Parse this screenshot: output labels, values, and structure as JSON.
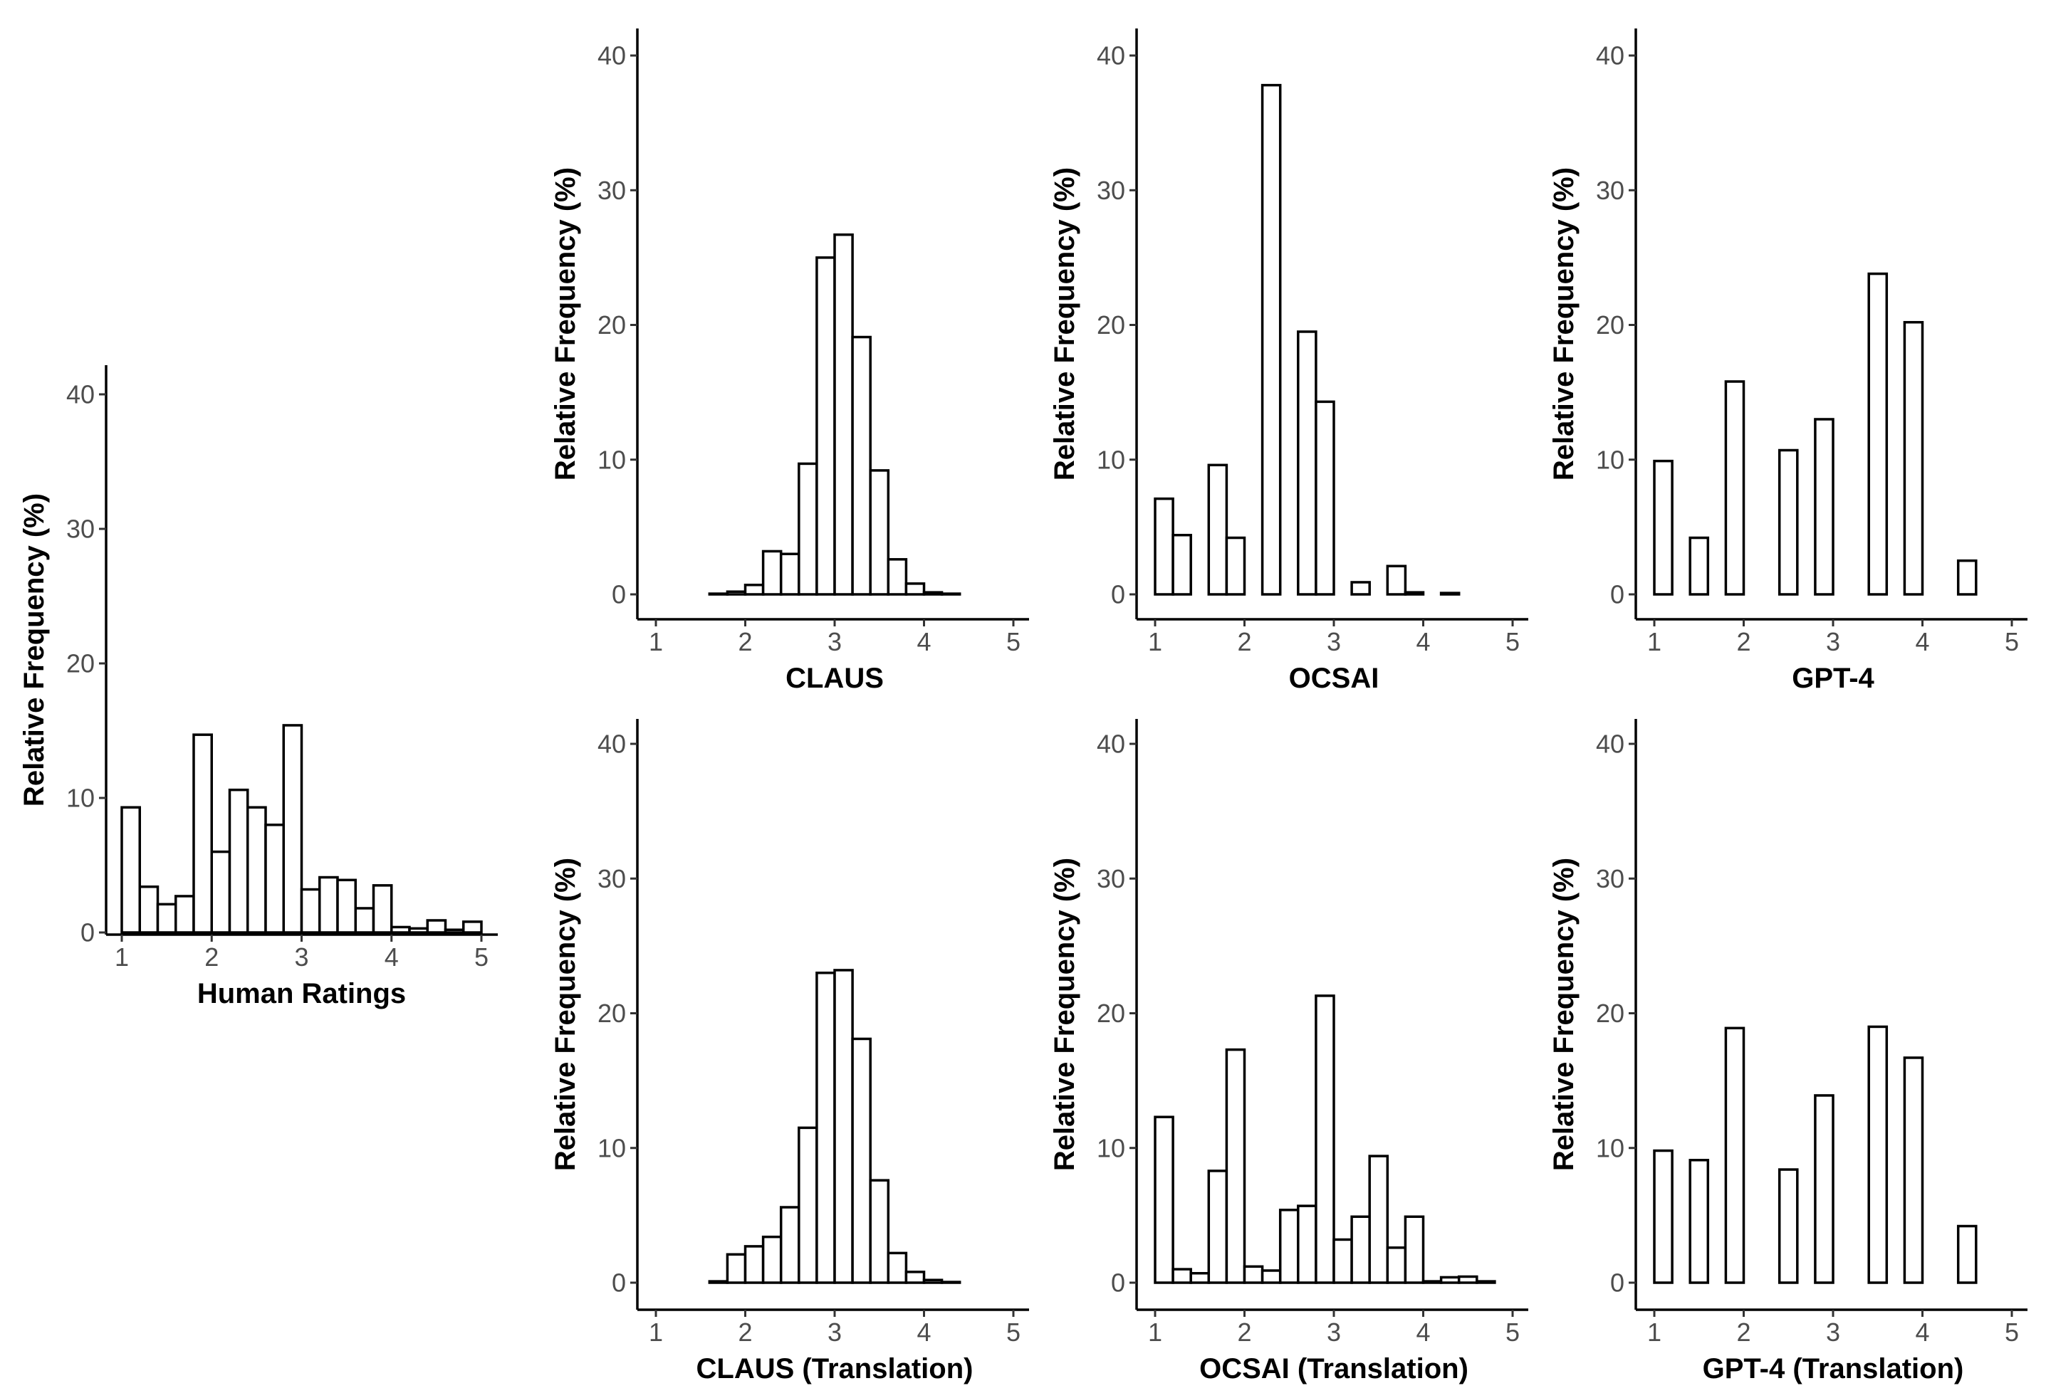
{
  "chart_data": [
    {
      "type": "bar",
      "id": "human",
      "title": "",
      "xlabel": "Human Ratings",
      "ylabel": "Relative Frequency (%)",
      "xlim": [
        1,
        5
      ],
      "ylim": [
        0,
        40
      ],
      "xticks": [
        1,
        2,
        3,
        4,
        5
      ],
      "yticks": [
        0,
        10,
        20,
        30,
        40
      ],
      "bin_width": 0.2,
      "bin_starts": [
        1.0,
        1.2,
        1.4,
        1.6,
        1.8,
        2.0,
        2.2,
        2.4,
        2.6,
        2.8,
        3.0,
        3.2,
        3.4,
        3.6,
        3.8,
        4.0,
        4.2,
        4.4,
        4.6,
        4.8
      ],
      "values": [
        9.3,
        3.4,
        2.1,
        2.7,
        14.7,
        6.0,
        10.6,
        9.3,
        8.0,
        15.4,
        3.2,
        4.1,
        3.9,
        1.8,
        3.5,
        0.4,
        0.3,
        0.9,
        0.2,
        0.8
      ],
      "grid": false
    },
    {
      "type": "bar",
      "id": "claus",
      "title": "",
      "xlabel": "CLAUS",
      "ylabel": "Relative Frequency (%)",
      "xlim": [
        1,
        5
      ],
      "ylim": [
        0,
        40
      ],
      "xticks": [
        1,
        2,
        3,
        4,
        5
      ],
      "yticks": [
        0,
        10,
        20,
        30,
        40
      ],
      "bin_width": 0.2,
      "bin_starts": [
        1.0,
        1.2,
        1.4,
        1.6,
        1.8,
        2.0,
        2.2,
        2.4,
        2.6,
        2.8,
        3.0,
        3.2,
        3.4,
        3.6,
        3.8,
        4.0,
        4.2,
        4.4,
        4.6,
        4.8
      ],
      "values": [
        0,
        0,
        0,
        0.05,
        0.2,
        0.7,
        3.2,
        3.0,
        9.7,
        25.0,
        26.7,
        19.1,
        9.2,
        2.6,
        0.8,
        0.15,
        0.05,
        0,
        0,
        0
      ],
      "grid": false
    },
    {
      "type": "bar",
      "id": "ocsai",
      "title": "",
      "xlabel": "OCSAI",
      "ylabel": "Relative Frequency (%)",
      "xlim": [
        1,
        5
      ],
      "ylim": [
        0,
        40
      ],
      "xticks": [
        1,
        2,
        3,
        4,
        5
      ],
      "yticks": [
        0,
        10,
        20,
        30,
        40
      ],
      "bin_width": 0.2,
      "bin_starts": [
        1.0,
        1.2,
        1.4,
        1.6,
        1.8,
        2.0,
        2.2,
        2.4,
        2.6,
        2.8,
        3.0,
        3.2,
        3.4,
        3.6,
        3.8,
        4.0,
        4.2,
        4.4,
        4.6,
        4.8
      ],
      "values": [
        7.1,
        4.4,
        0,
        9.6,
        4.2,
        0,
        37.8,
        0,
        19.5,
        14.3,
        0,
        0.9,
        0,
        2.1,
        0.15,
        0,
        0.1,
        0,
        0,
        0
      ],
      "grid": false
    },
    {
      "type": "bar",
      "id": "gpt4",
      "title": "",
      "xlabel": "GPT-4",
      "ylabel": "Relative Frequency (%)",
      "xlim": [
        1,
        5
      ],
      "ylim": [
        0,
        40
      ],
      "xticks": [
        1,
        2,
        3,
        4,
        5
      ],
      "yticks": [
        0,
        10,
        20,
        30,
        40
      ],
      "bin_width": 0.2,
      "bin_starts": [
        1.0,
        1.2,
        1.4,
        1.6,
        1.8,
        2.0,
        2.2,
        2.4,
        2.6,
        2.8,
        3.0,
        3.2,
        3.4,
        3.6,
        3.8,
        4.0,
        4.2,
        4.4,
        4.6,
        4.8
      ],
      "values": [
        9.9,
        0,
        4.2,
        0,
        15.8,
        0,
        0,
        10.7,
        0,
        13.0,
        0,
        0,
        23.8,
        0,
        20.2,
        0,
        0,
        2.5,
        0,
        0
      ],
      "grid": false
    },
    {
      "type": "bar",
      "id": "claus-translation",
      "title": "",
      "xlabel": "CLAUS (Translation)",
      "ylabel": "Relative Frequency (%)",
      "xlim": [
        1,
        5
      ],
      "ylim": [
        0,
        40
      ],
      "xticks": [
        1,
        2,
        3,
        4,
        5
      ],
      "yticks": [
        0,
        10,
        20,
        30,
        40
      ],
      "bin_width": 0.2,
      "bin_starts": [
        1.0,
        1.2,
        1.4,
        1.6,
        1.8,
        2.0,
        2.2,
        2.4,
        2.6,
        2.8,
        3.0,
        3.2,
        3.4,
        3.6,
        3.8,
        4.0,
        4.2,
        4.4,
        4.6,
        4.8
      ],
      "values": [
        0,
        0,
        0,
        0.1,
        2.1,
        2.7,
        3.4,
        5.6,
        11.5,
        23.0,
        23.2,
        18.1,
        7.6,
        2.2,
        0.8,
        0.2,
        0.05,
        0,
        0,
        0
      ],
      "grid": false
    },
    {
      "type": "bar",
      "id": "ocsai-translation",
      "title": "",
      "xlabel": "OCSAI (Translation)",
      "ylabel": "Relative Frequency (%)",
      "xlim": [
        1,
        5
      ],
      "ylim": [
        0,
        40
      ],
      "xticks": [
        1,
        2,
        3,
        4,
        5
      ],
      "yticks": [
        0,
        10,
        20,
        30,
        40
      ],
      "bin_width": 0.2,
      "bin_starts": [
        1.0,
        1.2,
        1.4,
        1.6,
        1.8,
        2.0,
        2.2,
        2.4,
        2.6,
        2.8,
        3.0,
        3.2,
        3.4,
        3.6,
        3.8,
        4.0,
        4.2,
        4.4,
        4.6,
        4.8
      ],
      "values": [
        12.3,
        1.0,
        0.7,
        8.3,
        17.3,
        1.2,
        0.9,
        5.4,
        5.7,
        21.3,
        3.2,
        4.9,
        9.4,
        2.6,
        4.9,
        0.1,
        0.4,
        0.45,
        0.1,
        0
      ],
      "grid": false
    },
    {
      "type": "bar",
      "id": "gpt4-translation",
      "title": "",
      "xlabel": "GPT-4 (Translation)",
      "ylabel": "Relative Frequency (%)",
      "xlim": [
        1,
        5
      ],
      "ylim": [
        0,
        40
      ],
      "xticks": [
        1,
        2,
        3,
        4,
        5
      ],
      "yticks": [
        0,
        10,
        20,
        30,
        40
      ],
      "bin_width": 0.2,
      "bin_starts": [
        1.0,
        1.2,
        1.4,
        1.6,
        1.8,
        2.0,
        2.2,
        2.4,
        2.6,
        2.8,
        3.0,
        3.2,
        3.4,
        3.6,
        3.8,
        4.0,
        4.2,
        4.4,
        4.6,
        4.8
      ],
      "values": [
        9.8,
        0,
        9.1,
        0,
        18.9,
        0,
        0,
        8.4,
        0,
        13.9,
        0,
        0,
        19.0,
        0,
        16.7,
        0,
        0,
        4.2,
        0,
        0
      ],
      "grid": false
    }
  ]
}
